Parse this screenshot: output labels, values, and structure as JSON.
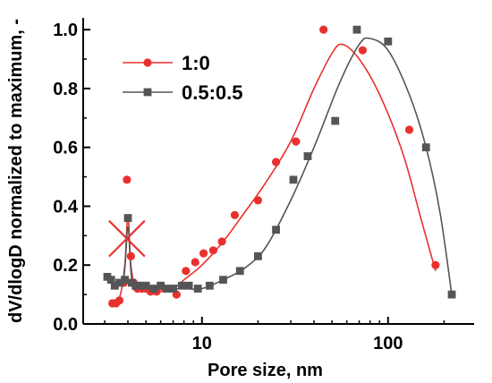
{
  "chart_data": {
    "type": "scatter",
    "xlabel": "Pore size, nm",
    "ylabel": "dV/dlogD normalized to maximum, -",
    "xscale": "log",
    "xlim": [
      2.3,
      290
    ],
    "ylim": [
      0,
      1.04
    ],
    "x_ticks": [
      {
        "value": 10,
        "label": "10"
      },
      {
        "value": 100,
        "label": "100"
      }
    ],
    "y_ticks": [
      {
        "value": 0.0,
        "label": "0.0"
      },
      {
        "value": 0.2,
        "label": "0.2"
      },
      {
        "value": 0.4,
        "label": "0.4"
      },
      {
        "value": 0.6,
        "label": "0.6"
      },
      {
        "value": 0.8,
        "label": "0.8"
      },
      {
        "value": 1.0,
        "label": "1.0"
      }
    ],
    "grid": false,
    "legend_position": "top-left",
    "series": [
      {
        "name": "1:0",
        "color": "#e8312f",
        "marker": "circle",
        "points": [
          [
            3.3,
            0.07
          ],
          [
            3.45,
            0.07
          ],
          [
            3.6,
            0.08
          ],
          [
            3.8,
            0.14
          ],
          [
            3.95,
            0.49
          ],
          [
            4.15,
            0.23
          ],
          [
            4.3,
            0.14
          ],
          [
            4.5,
            0.12
          ],
          [
            4.75,
            0.12
          ],
          [
            5.0,
            0.12
          ],
          [
            5.3,
            0.11
          ],
          [
            5.7,
            0.11
          ],
          [
            6.3,
            0.12
          ],
          [
            7.3,
            0.1
          ],
          [
            8.2,
            0.18
          ],
          [
            9.2,
            0.21
          ],
          [
            10.2,
            0.24
          ],
          [
            11.5,
            0.25
          ],
          [
            12.8,
            0.28
          ],
          [
            15.0,
            0.37
          ],
          [
            20.0,
            0.42
          ],
          [
            25.0,
            0.55
          ],
          [
            32.0,
            0.62
          ],
          [
            45.0,
            1.0
          ],
          [
            73.0,
            0.93
          ],
          [
            130.0,
            0.66
          ],
          [
            180.0,
            0.2
          ]
        ],
        "curve": [
          [
            3.2,
            0.08
          ],
          [
            3.6,
            0.09
          ],
          [
            3.85,
            0.2
          ],
          [
            4.0,
            0.37
          ],
          [
            4.15,
            0.2
          ],
          [
            4.4,
            0.13
          ],
          [
            5.0,
            0.12
          ],
          [
            6.0,
            0.11
          ],
          [
            7.0,
            0.12
          ],
          [
            8.0,
            0.15
          ],
          [
            10.0,
            0.2
          ],
          [
            13.0,
            0.28
          ],
          [
            17.0,
            0.38
          ],
          [
            22.0,
            0.48
          ],
          [
            30.0,
            0.62
          ],
          [
            40.0,
            0.8
          ],
          [
            50.0,
            0.92
          ],
          [
            57.0,
            0.95
          ],
          [
            70.0,
            0.9
          ],
          [
            90.0,
            0.78
          ],
          [
            120.0,
            0.58
          ],
          [
            150.0,
            0.36
          ],
          [
            180.0,
            0.18
          ]
        ]
      },
      {
        "name": "0.5:0.5",
        "color": "#555555",
        "marker": "square",
        "points": [
          [
            3.1,
            0.16
          ],
          [
            3.25,
            0.15
          ],
          [
            3.4,
            0.13
          ],
          [
            3.6,
            0.14
          ],
          [
            3.85,
            0.15
          ],
          [
            4.0,
            0.36
          ],
          [
            4.2,
            0.14
          ],
          [
            4.4,
            0.13
          ],
          [
            4.7,
            0.13
          ],
          [
            5.0,
            0.13
          ],
          [
            5.5,
            0.12
          ],
          [
            6.0,
            0.13
          ],
          [
            6.5,
            0.12
          ],
          [
            7.0,
            0.12
          ],
          [
            7.8,
            0.13
          ],
          [
            8.5,
            0.13
          ],
          [
            9.5,
            0.12
          ],
          [
            11.0,
            0.13
          ],
          [
            13.0,
            0.15
          ],
          [
            16.0,
            0.18
          ],
          [
            20.0,
            0.23
          ],
          [
            25.0,
            0.32
          ],
          [
            31.0,
            0.49
          ],
          [
            37.0,
            0.57
          ],
          [
            52.0,
            0.69
          ],
          [
            68.0,
            1.0
          ],
          [
            100.0,
            0.96
          ],
          [
            160.0,
            0.6
          ],
          [
            220.0,
            0.1
          ]
        ],
        "curve": [
          [
            3.1,
            0.16
          ],
          [
            3.4,
            0.14
          ],
          [
            3.8,
            0.16
          ],
          [
            4.0,
            0.33
          ],
          [
            4.2,
            0.15
          ],
          [
            4.6,
            0.13
          ],
          [
            6.0,
            0.12
          ],
          [
            8.0,
            0.12
          ],
          [
            10.0,
            0.12
          ],
          [
            13.0,
            0.15
          ],
          [
            17.0,
            0.19
          ],
          [
            22.0,
            0.26
          ],
          [
            30.0,
            0.42
          ],
          [
            40.0,
            0.6
          ],
          [
            55.0,
            0.82
          ],
          [
            70.0,
            0.95
          ],
          [
            80.0,
            0.97
          ],
          [
            100.0,
            0.93
          ],
          [
            130.0,
            0.78
          ],
          [
            160.0,
            0.6
          ],
          [
            190.0,
            0.38
          ],
          [
            220.0,
            0.1
          ]
        ]
      }
    ],
    "annotations": [
      {
        "type": "cross-marker",
        "x": 3.95,
        "y": 0.29,
        "color": "#e8312f"
      }
    ]
  }
}
